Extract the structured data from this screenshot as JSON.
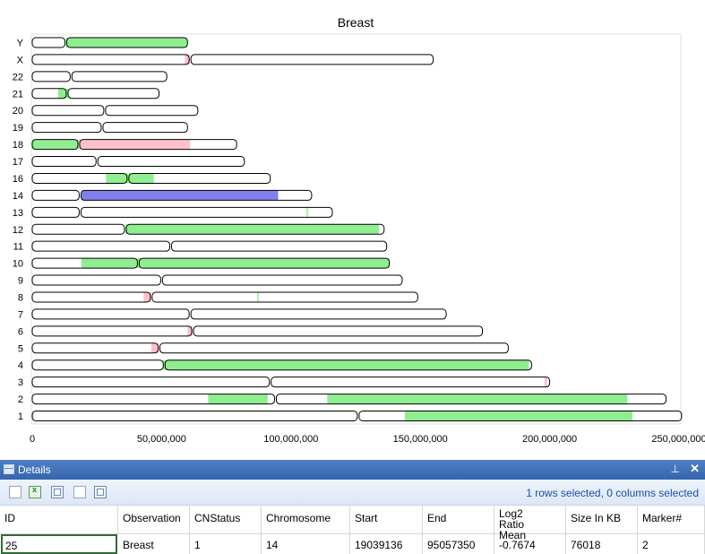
{
  "chart_data": {
    "type": "chromosome-ideogram",
    "title": "Breast",
    "x_ticks": [
      "0",
      "50,000,000",
      "100,000,000",
      "150,000,000",
      "200,000,000",
      "250,000,000"
    ],
    "x_tick_values": [
      0,
      50000000,
      100000000,
      150000000,
      200000000,
      250000000
    ],
    "xlim": [
      0,
      250000000
    ],
    "grid": false,
    "colors": {
      "gain": "#90ee90",
      "loss": "#ffc0cb",
      "selected": "#8080ee"
    },
    "chromosomes": [
      {
        "name": "Y",
        "length": 60000000,
        "centromere": 13000000,
        "segments": [
          {
            "start": 13000000,
            "end": 60000000,
            "type": "gain"
          }
        ]
      },
      {
        "name": "X",
        "length": 155000000,
        "centromere": 61000000,
        "segments": [
          {
            "start": 59000000,
            "end": 61000000,
            "type": "loss"
          }
        ]
      },
      {
        "name": "22",
        "length": 52000000,
        "centromere": 15000000,
        "segments": []
      },
      {
        "name": "21",
        "length": 49000000,
        "centromere": 13500000,
        "segments": [
          {
            "start": 10000000,
            "end": 14000000,
            "type": "gain"
          }
        ]
      },
      {
        "name": "20",
        "length": 64000000,
        "centromere": 28000000,
        "segments": []
      },
      {
        "name": "19",
        "length": 60000000,
        "centromere": 27000000,
        "segments": []
      },
      {
        "name": "18",
        "length": 79000000,
        "centromere": 18000000,
        "segments": [
          {
            "start": 0,
            "end": 18000000,
            "type": "gain"
          },
          {
            "start": 18000000,
            "end": 61000000,
            "type": "loss"
          }
        ]
      },
      {
        "name": "17",
        "length": 82000000,
        "centromere": 25000000,
        "segments": []
      },
      {
        "name": "16",
        "length": 92000000,
        "centromere": 37000000,
        "segments": [
          {
            "start": 28500000,
            "end": 47000000,
            "type": "gain"
          }
        ]
      },
      {
        "name": "14",
        "length": 108000000,
        "centromere": 18500000,
        "segments": [
          {
            "start": 19039136,
            "end": 95057350,
            "type": "selected"
          }
        ]
      },
      {
        "name": "13",
        "length": 116000000,
        "centromere": 18500000,
        "segments": [
          {
            "start": 106000000,
            "end": 106500000,
            "type": "gain"
          }
        ]
      },
      {
        "name": "12",
        "length": 136000000,
        "centromere": 36000000,
        "segments": [
          {
            "start": 36000000,
            "end": 134000000,
            "type": "gain"
          }
        ]
      },
      {
        "name": "11",
        "length": 137000000,
        "centromere": 53500000,
        "segments": []
      },
      {
        "name": "10",
        "length": 138000000,
        "centromere": 41000000,
        "segments": [
          {
            "start": 19000000,
            "end": 41000000,
            "type": "gain"
          },
          {
            "start": 41000000,
            "end": 138000000,
            "type": "gain"
          }
        ]
      },
      {
        "name": "9",
        "length": 143000000,
        "centromere": 50000000,
        "segments": []
      },
      {
        "name": "8",
        "length": 149000000,
        "centromere": 46000000,
        "segments": [
          {
            "start": 43000000,
            "end": 46000000,
            "type": "loss"
          },
          {
            "start": 87000000,
            "end": 87500000,
            "type": "gain"
          }
        ]
      },
      {
        "name": "7",
        "length": 160000000,
        "centromere": 61000000,
        "segments": []
      },
      {
        "name": "6",
        "length": 174000000,
        "centromere": 62000000,
        "segments": [
          {
            "start": 60000000,
            "end": 62000000,
            "type": "loss"
          }
        ]
      },
      {
        "name": "5",
        "length": 184000000,
        "centromere": 49000000,
        "segments": [
          {
            "start": 46000000,
            "end": 49000000,
            "type": "loss"
          }
        ]
      },
      {
        "name": "4",
        "length": 193000000,
        "centromere": 51000000,
        "segments": [
          {
            "start": 50500000,
            "end": 192000000,
            "type": "gain"
          }
        ]
      },
      {
        "name": "3",
        "length": 200000000,
        "centromere": 92000000,
        "segments": [
          {
            "start": 198000000,
            "end": 199000000,
            "type": "loss"
          }
        ]
      },
      {
        "name": "2",
        "length": 245000000,
        "centromere": 94000000,
        "segments": [
          {
            "start": 68000000,
            "end": 91000000,
            "type": "gain"
          },
          {
            "start": 114000000,
            "end": 230000000,
            "type": "gain"
          }
        ]
      },
      {
        "name": "1",
        "length": 251000000,
        "centromere": 126000000,
        "segments": [
          {
            "start": 0,
            "end": 500000,
            "type": "loss"
          },
          {
            "start": 144000000,
            "end": 232000000,
            "type": "gain"
          }
        ]
      }
    ]
  },
  "details": {
    "title": "Details",
    "pin_glyph": "⊥",
    "close_glyph": "✕",
    "toolbar_icons": [
      "new-document-icon",
      "excel-export-icon",
      "copy-grid-icon",
      "copy-icon",
      "multi-window-icon"
    ],
    "status": "1 rows selected, 0 columns selected",
    "columns": [
      {
        "label": "ID"
      },
      {
        "label": "Observation"
      },
      {
        "label": "CNStatus"
      },
      {
        "label": "Chromosome"
      },
      {
        "label": "Start"
      },
      {
        "label": "End"
      },
      {
        "label": "Log2 Ratio Mean"
      },
      {
        "label": "Size In KB"
      },
      {
        "label": "Marker#"
      }
    ],
    "rows": [
      {
        "id": "25",
        "observation": "Breast",
        "cnstatus": "1",
        "chromosome": "14",
        "start": "19039136",
        "end": "95057350",
        "log2": "-0.7674",
        "size_kb": "76018",
        "markers": "2"
      }
    ]
  }
}
